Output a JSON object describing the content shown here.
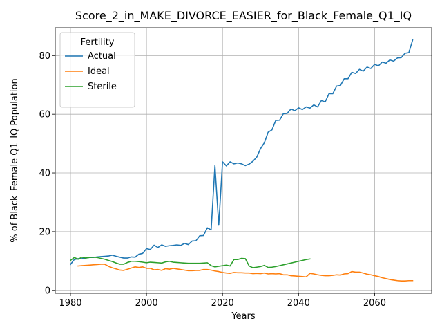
{
  "chart_data": {
    "type": "line",
    "title": "Score_2_in_MAKE_DIVORCE_EASIER_for_Black_Female_Q1_IQ",
    "xlabel": "Years",
    "ylabel": "% of Black_Female Q1_IQ Population",
    "xlim": [
      1976,
      2075
    ],
    "ylim": [
      -1,
      89.5
    ],
    "xticks": [
      1980,
      2000,
      2020,
      2040,
      2060
    ],
    "yticks": [
      0,
      20,
      40,
      60,
      80
    ],
    "grid": true,
    "legend": {
      "title": "Fertility",
      "placement": "top-left"
    },
    "series": [
      {
        "name": "Actual",
        "color": "#1f77b4",
        "x": [
          1980,
          1981,
          1982,
          1983,
          1984,
          1985,
          1986,
          1987,
          1988,
          1989,
          1990,
          1991,
          1992,
          1993,
          1994,
          1995,
          1996,
          1997,
          1998,
          1999,
          2000,
          2001,
          2002,
          2003,
          2004,
          2005,
          2006,
          2007,
          2008,
          2009,
          2010,
          2011,
          2012,
          2013,
          2014,
          2015,
          2016,
          2017,
          2018,
          2019,
          2020,
          2021,
          2022,
          2023,
          2024,
          2025,
          2026,
          2027,
          2028,
          2029,
          2030,
          2031,
          2032,
          2033,
          2034,
          2035,
          2036,
          2037,
          2038,
          2039,
          2040,
          2041,
          2042,
          2043,
          2044,
          2045,
          2046,
          2047,
          2048,
          2049,
          2050,
          2051,
          2052,
          2053,
          2054,
          2055,
          2056,
          2057,
          2058,
          2059,
          2060,
          2061,
          2062,
          2063,
          2064,
          2065,
          2066,
          2067,
          2068,
          2069,
          2070
        ],
        "y": [
          8.8,
          10.5,
          10.8,
          10.8,
          11.0,
          11.2,
          11.2,
          11.4,
          11.5,
          11.6,
          11.7,
          12.0,
          11.6,
          11.3,
          11.0,
          11.0,
          11.4,
          11.3,
          12.3,
          12.6,
          14.2,
          13.9,
          15.4,
          14.6,
          15.5,
          15.0,
          15.2,
          15.3,
          15.5,
          15.3,
          16.0,
          15.6,
          16.8,
          16.9,
          18.6,
          18.7,
          21.3,
          20.6,
          42.5,
          22.2,
          43.8,
          42.4,
          43.8,
          43.1,
          43.4,
          43.1,
          42.5,
          43.0,
          44.0,
          45.4,
          48.3,
          50.3,
          53.9,
          54.7,
          57.9,
          58.0,
          60.2,
          60.3,
          61.8,
          61.2,
          62.2,
          61.6,
          62.5,
          62.1,
          63.2,
          62.5,
          64.7,
          64.2,
          67.0,
          67.0,
          69.6,
          69.8,
          72.1,
          72.1,
          74.3,
          73.9,
          75.3,
          74.7,
          76.1,
          75.6,
          77.0,
          76.5,
          77.8,
          77.4,
          78.5,
          78.1,
          79.2,
          79.3,
          80.8,
          81.0,
          85.3
        ]
      },
      {
        "name": "Ideal",
        "color": "#ff7f0e",
        "x": [
          1982,
          1983,
          1984,
          1985,
          1986,
          1987,
          1988,
          1989,
          1990,
          1991,
          1992,
          1993,
          1994,
          1995,
          1996,
          1997,
          1998,
          1999,
          2000,
          2001,
          2002,
          2003,
          2004,
          2005,
          2006,
          2007,
          2008,
          2009,
          2010,
          2011,
          2012,
          2013,
          2014,
          2015,
          2016,
          2017,
          2018,
          2019,
          2020,
          2021,
          2022,
          2023,
          2024,
          2025,
          2026,
          2027,
          2028,
          2029,
          2030,
          2031,
          2032,
          2033,
          2034,
          2035,
          2036,
          2037,
          2038,
          2039,
          2040,
          2041,
          2042,
          2043,
          2044,
          2045,
          2046,
          2047,
          2048,
          2049,
          2050,
          2051,
          2052,
          2053,
          2054,
          2055,
          2056,
          2057,
          2058,
          2059,
          2060,
          2061,
          2062,
          2063,
          2064,
          2065,
          2066,
          2067,
          2068,
          2069,
          2070
        ],
        "y": [
          8.3,
          8.4,
          8.5,
          8.6,
          8.7,
          8.8,
          8.9,
          8.9,
          8.2,
          7.7,
          7.3,
          6.9,
          6.8,
          7.2,
          7.6,
          8.0,
          7.8,
          8.0,
          7.5,
          7.5,
          7.0,
          7.1,
          6.8,
          7.4,
          7.2,
          7.5,
          7.3,
          7.1,
          6.9,
          6.7,
          6.7,
          6.8,
          6.8,
          7.1,
          7.1,
          6.9,
          6.6,
          6.4,
          6.1,
          5.9,
          5.8,
          6.1,
          6.0,
          6.0,
          5.9,
          5.9,
          5.7,
          5.8,
          5.7,
          5.9,
          5.6,
          5.7,
          5.6,
          5.7,
          5.3,
          5.3,
          5.0,
          4.9,
          4.8,
          4.7,
          4.6,
          5.8,
          5.6,
          5.3,
          5.1,
          5.0,
          5.0,
          5.1,
          5.3,
          5.2,
          5.6,
          5.7,
          6.4,
          6.2,
          6.2,
          5.9,
          5.5,
          5.3,
          5.0,
          4.7,
          4.3,
          4.0,
          3.7,
          3.5,
          3.3,
          3.2,
          3.2,
          3.3,
          3.3
        ]
      },
      {
        "name": "Sterile",
        "color": "#2ca02c",
        "x": [
          1980,
          1981,
          1982,
          1983,
          1984,
          1985,
          1986,
          1987,
          1988,
          1989,
          1990,
          1991,
          1992,
          1993,
          1994,
          1995,
          1996,
          1997,
          1998,
          1999,
          2000,
          2001,
          2002,
          2003,
          2004,
          2005,
          2006,
          2007,
          2008,
          2009,
          2010,
          2011,
          2012,
          2013,
          2014,
          2015,
          2016,
          2017,
          2018,
          2019,
          2020,
          2021,
          2022,
          2023,
          2024,
          2025,
          2026,
          2027,
          2028,
          2029,
          2030,
          2031,
          2032,
          2033,
          2034,
          2035,
          2036,
          2037,
          2038,
          2039,
          2040,
          2041,
          2042,
          2043
        ],
        "y": [
          10.2,
          11.2,
          10.6,
          11.3,
          11.0,
          11.2,
          11.3,
          11.2,
          10.9,
          10.6,
          10.2,
          9.8,
          9.3,
          8.9,
          8.9,
          9.5,
          9.9,
          9.9,
          9.8,
          9.6,
          9.4,
          9.6,
          9.5,
          9.4,
          9.3,
          9.7,
          9.9,
          9.6,
          9.5,
          9.4,
          9.3,
          9.2,
          9.2,
          9.2,
          9.2,
          9.3,
          9.4,
          8.4,
          8.0,
          8.2,
          8.4,
          8.6,
          8.3,
          10.5,
          10.5,
          10.9,
          10.8,
          8.3,
          7.7,
          7.9,
          8.1,
          8.5,
          7.8,
          7.9,
          8.1,
          8.4,
          8.7,
          9.0,
          9.3,
          9.6,
          9.9,
          10.2,
          10.5,
          10.7
        ]
      }
    ]
  }
}
